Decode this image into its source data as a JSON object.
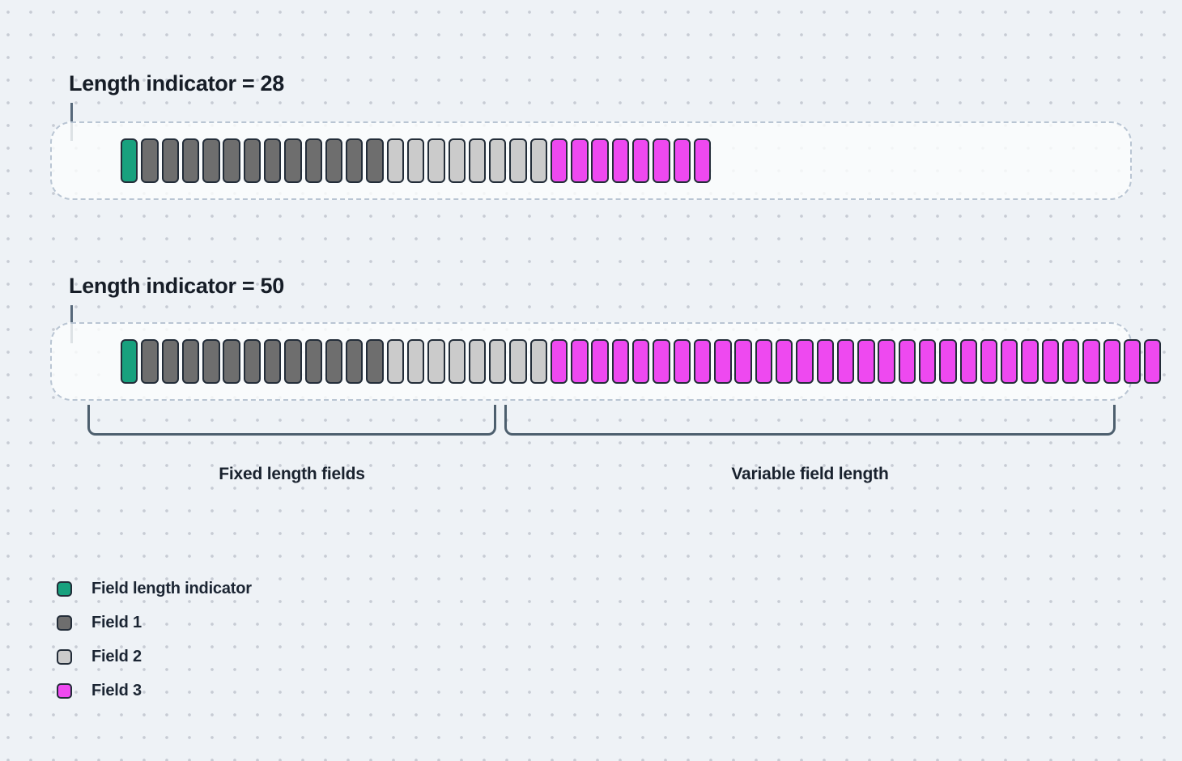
{
  "diagram": {
    "sections": [
      {
        "title": "Length indicator = 28",
        "length_value": 28,
        "segments": [
          {
            "name": "Field length indicator",
            "type": "indicator",
            "count": 1
          },
          {
            "name": "Field 1",
            "type": "field1",
            "count": 12
          },
          {
            "name": "Field 2",
            "type": "field2",
            "count": 8
          },
          {
            "name": "Field 3",
            "type": "field3",
            "count": 8
          }
        ]
      },
      {
        "title": "Length indicator = 50",
        "length_value": 50,
        "segments": [
          {
            "name": "Field length indicator",
            "type": "indicator",
            "count": 1
          },
          {
            "name": "Field 1",
            "type": "field1",
            "count": 12
          },
          {
            "name": "Field 2",
            "type": "field2",
            "count": 8
          },
          {
            "name": "Field 3",
            "type": "field3",
            "count": 30
          }
        ]
      }
    ],
    "brackets": [
      {
        "label": "Fixed length fields"
      },
      {
        "label": "Variable field length"
      }
    ],
    "legend": [
      {
        "label": "Field length indicator",
        "type": "indicator"
      },
      {
        "label": "Field 1",
        "type": "field1"
      },
      {
        "label": "Field 2",
        "type": "field2"
      },
      {
        "label": "Field 3",
        "type": "field3"
      }
    ],
    "colors": {
      "indicator": "#18a17e",
      "field1": "#6e6e6e",
      "field2": "#cbcbcb",
      "field3": "#ee49f0",
      "cell_border": "#232d39",
      "accent_line": "#4d5f6e",
      "background": "#eef2f6"
    }
  }
}
